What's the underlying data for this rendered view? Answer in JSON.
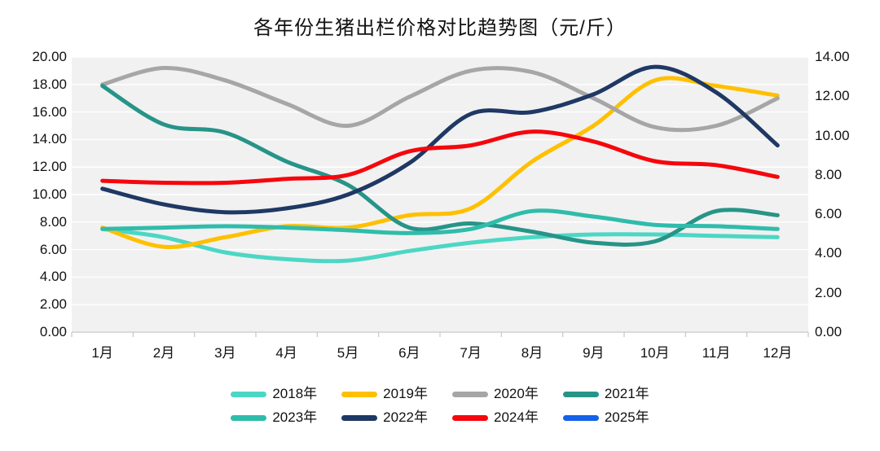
{
  "title": "各年份生猪出栏价格对比趋势图（元/斤）",
  "chart_data": {
    "type": "line",
    "title": "各年份生猪出栏价格对比趋势图（元/斤）",
    "categories": [
      "1月",
      "2月",
      "3月",
      "4月",
      "5月",
      "6月",
      "7月",
      "8月",
      "9月",
      "10月",
      "11月",
      "12月"
    ],
    "axes": {
      "left": {
        "min": 0,
        "max": 20,
        "ticks_top_to_bottom": [
          "20.00",
          "18.00",
          "16.00",
          "14.00",
          "12.00",
          "10.00",
          "8.00",
          "6.00",
          "4.00",
          "2.00",
          "0.00"
        ]
      },
      "right": {
        "min": 0,
        "max": 14,
        "ticks_top_to_bottom": [
          "14.00",
          "12.00",
          "10.00",
          "8.00",
          "6.00",
          "4.00",
          "2.00",
          "0.00"
        ]
      }
    },
    "grid": true,
    "smooth_lines": true,
    "legend_position": "bottom",
    "series": [
      {
        "name": "2018年",
        "color": "#4CD7C4",
        "axis": "left",
        "values": [
          7.5,
          6.9,
          5.8,
          5.3,
          5.2,
          5.9,
          6.5,
          6.9,
          7.1,
          7.1,
          7.0,
          6.9
        ]
      },
      {
        "name": "2019年",
        "color": "#FFC000",
        "axis": "left",
        "values": [
          7.6,
          6.2,
          6.9,
          7.7,
          7.6,
          8.5,
          9.0,
          12.4,
          15.0,
          18.3,
          17.9,
          17.2
        ]
      },
      {
        "name": "2020年",
        "color": "#A6A6A6",
        "axis": "left",
        "values": [
          18.0,
          19.2,
          18.3,
          16.6,
          15.0,
          17.1,
          19.0,
          18.9,
          17.0,
          14.9,
          15.0,
          17.0
        ]
      },
      {
        "name": "2021年",
        "color": "#279488",
        "axis": "left",
        "values": [
          17.9,
          15.1,
          14.5,
          12.4,
          10.7,
          7.6,
          7.9,
          7.3,
          6.5,
          6.6,
          8.8,
          8.5
        ]
      },
      {
        "name": "2023年",
        "color": "#2FBCAB",
        "axis": "left",
        "values": [
          7.5,
          7.6,
          7.7,
          7.6,
          7.4,
          7.2,
          7.5,
          8.8,
          8.4,
          7.8,
          7.7,
          7.5
        ]
      },
      {
        "name": "2022年",
        "color": "#1F3864",
        "axis": "right",
        "values": [
          7.3,
          6.5,
          6.1,
          6.3,
          7.0,
          8.6,
          11.1,
          11.2,
          12.1,
          13.5,
          12.2,
          9.5
        ]
      },
      {
        "name": "2024年",
        "color": "#F5070D",
        "axis": "right",
        "values": [
          7.7,
          7.6,
          7.6,
          7.8,
          8.0,
          9.2,
          9.5,
          10.2,
          9.7,
          8.7,
          8.5,
          7.9
        ]
      },
      {
        "name": "2025年",
        "color": "#1561E9",
        "axis": "right",
        "values": []
      }
    ],
    "legend_rows": [
      [
        0,
        1,
        2,
        3
      ],
      [
        4,
        5,
        6,
        7
      ]
    ],
    "colors": {
      "plot_background": "#F1F1F1",
      "gridline": "#FFFFFF",
      "axis_line": "#C6C6C6",
      "text": "#111111"
    }
  }
}
